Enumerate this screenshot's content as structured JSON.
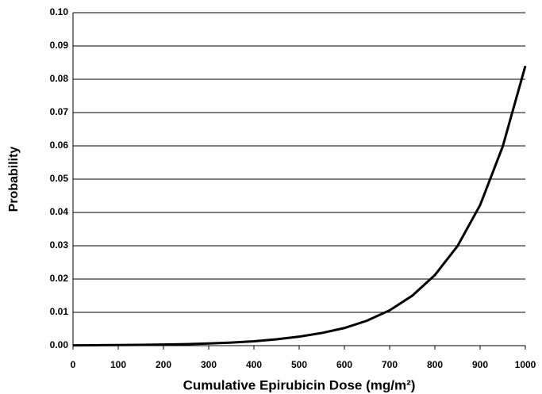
{
  "chart_data": {
    "type": "line",
    "x_label": "Cumulative Epirubicin Dose (mg/m²)",
    "y_label": "Probability",
    "x": [
      0,
      50,
      100,
      150,
      200,
      250,
      300,
      350,
      400,
      450,
      500,
      550,
      600,
      650,
      700,
      750,
      800,
      850,
      900,
      950,
      1000
    ],
    "series": [
      {
        "name": "Probability",
        "color": "#000000",
        "values": [
          0.0001,
          0.00013,
          0.00018,
          0.00024,
          0.00033,
          0.00046,
          0.00066,
          0.00093,
          0.0013,
          0.0019,
          0.0027,
          0.0038,
          0.0053,
          0.0075,
          0.0106,
          0.015,
          0.0212,
          0.0299,
          0.0422,
          0.0598,
          0.084
        ]
      }
    ],
    "xlim": [
      0,
      1000
    ],
    "xticks": [
      0,
      100,
      200,
      300,
      400,
      500,
      600,
      700,
      800,
      900,
      1000
    ],
    "ylim": [
      0,
      0.1
    ],
    "yticks": [
      {
        "value": 0,
        "label": "0.00"
      },
      0.01,
      0.02,
      0.03,
      0.04,
      0.05,
      0.06,
      0.07,
      0.08,
      0.09,
      {
        "value": 0.1,
        "label": "0.10"
      }
    ],
    "grid": true
  }
}
